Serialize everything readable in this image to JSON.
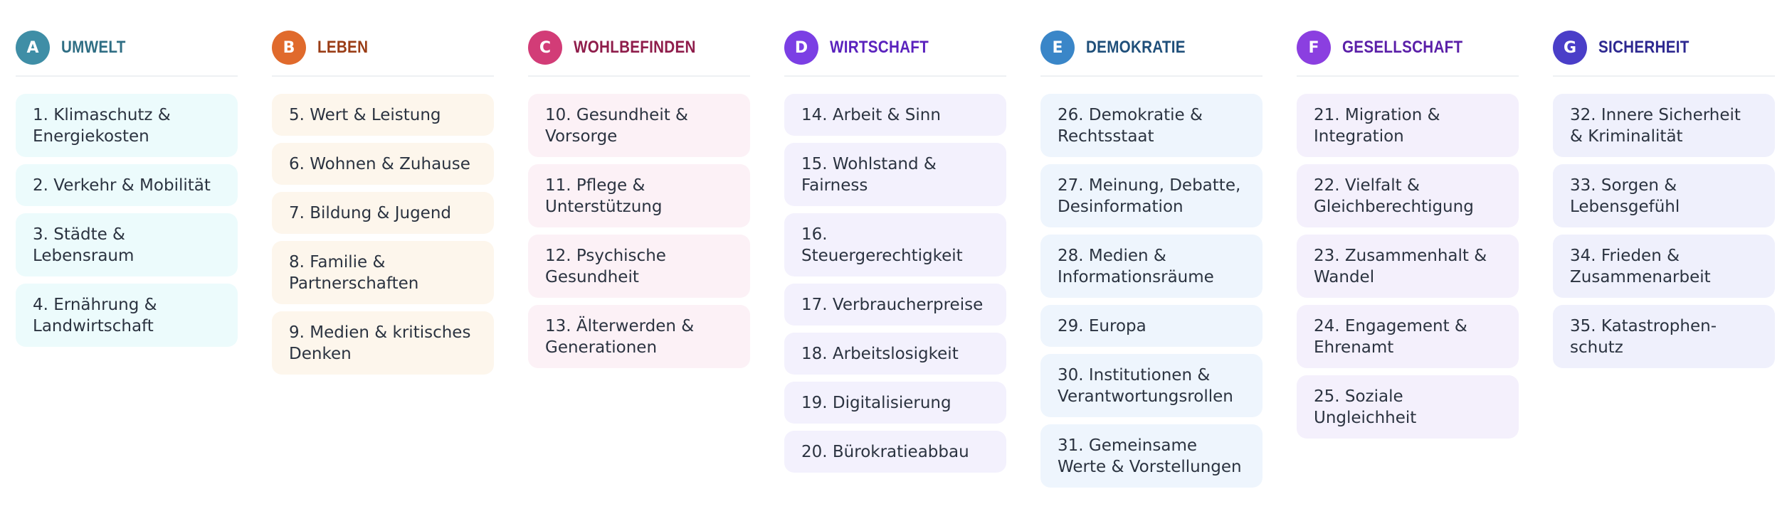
{
  "columns": [
    {
      "letter": "A",
      "title": "UMWELT",
      "badge_color": "#3f8ea6",
      "title_color": "#2f6e84",
      "item_bg": "#ecfbfc",
      "items": [
        "1. Klimaschutz & Energiekosten",
        "2. Verkehr & Mobilität",
        "3. Städte & Lebensraum",
        "4. Ernährung & Landwirtschaft"
      ]
    },
    {
      "letter": "B",
      "title": "LEBEN",
      "badge_color": "#e06a2c",
      "title_color": "#9a3d16",
      "item_bg": "#fdf6ec",
      "items": [
        "5. Wert & Leistung",
        "6. Wohnen & Zuhause",
        "7. Bildung & Jugend",
        "8. Familie & Partnerschaften",
        "9. Medien & kritisches Denken"
      ]
    },
    {
      "letter": "C",
      "title": "WOHLBEFINDEN",
      "badge_color": "#d23c77",
      "title_color": "#8f1d4b",
      "item_bg": "#fcf1f6",
      "items": [
        "10. Gesundheit & Vorsorge",
        "11. Pflege & Unterstützung",
        "12. Psychische Gesundheit",
        "13. Älterwerden & Generationen"
      ]
    },
    {
      "letter": "D",
      "title": "WIRTSCHAFT",
      "badge_color": "#7b3fe4",
      "title_color": "#5a22bd",
      "item_bg": "#f3f1fd",
      "items": [
        "14. Arbeit & Sinn",
        "15. Wohlstand & Fairness",
        "16. Steuergerechtigkeit",
        "17. Verbraucherpreise",
        "18. Arbeitslosigkeit",
        "19. Digitalisierung",
        "20. Bürokratieabbau"
      ]
    },
    {
      "letter": "E",
      "title": "DEMOKRATIE",
      "badge_color": "#3a86c8",
      "title_color": "#1f4f7a",
      "item_bg": "#eef5fd",
      "items": [
        "26. Demokratie & Rechtsstaat",
        "27. Meinung, Debatte, Desinformation",
        "28. Medien & Informationsräume",
        "29. Europa",
        "30. Institutionen & Verantwortungsrollen",
        "31. Gemeinsame Werte & Vorstellungen"
      ]
    },
    {
      "letter": "F",
      "title": "GESELLSCHAFT",
      "badge_color": "#8b3fe0",
      "title_color": "#5a1fa8",
      "item_bg": "#f4f0fc",
      "items": [
        "21. Migration & Integration",
        "22. Vielfalt & Gleichberechtigung",
        "23. Zusammenhalt & Wandel",
        "24. Engagement & Ehrenamt",
        "25. Soziale Ungleichheit"
      ]
    },
    {
      "letter": "G",
      "title": "SICHERHEIT",
      "badge_color": "#4a3ec8",
      "title_color": "#2d2890",
      "item_bg": "#eff0fc",
      "items": [
        "32. Innere Sicherheit & Kriminalität",
        "33. Sorgen & Lebensgefühl",
        "34. Frieden & Zusammenarbeit",
        "35. Katastrophen-schutz"
      ]
    }
  ]
}
